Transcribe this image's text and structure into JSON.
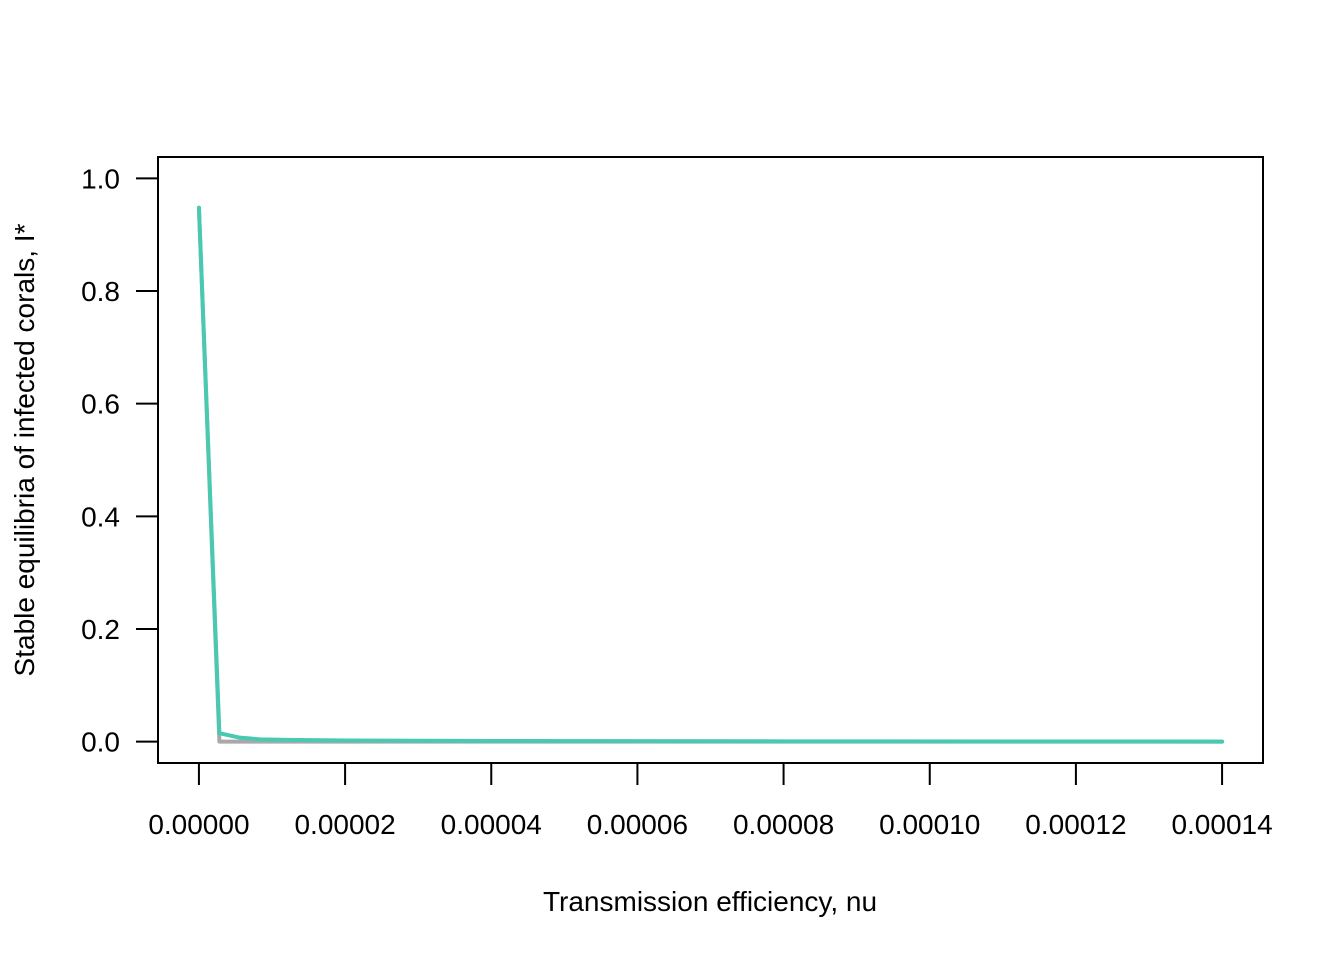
{
  "chart_data": {
    "type": "line",
    "title": "",
    "xlabel": "Transmission efficiency, nu",
    "ylabel": "Stable equilibria of infected corals, I*",
    "xlim": [
      -5.6e-06,
      0.0001456
    ],
    "ylim": [
      -0.038,
      1.038
    ],
    "x_ticks": [
      0,
      2e-05,
      4e-05,
      6e-05,
      8e-05,
      0.0001,
      0.00012,
      0.00014
    ],
    "x_tick_labels": [
      "0.00000",
      "0.00002",
      "0.00004",
      "0.00006",
      "0.00008",
      "0.00010",
      "0.00012",
      "0.00014"
    ],
    "y_ticks": [
      0,
      0.2,
      0.4,
      0.6,
      0.8,
      1.0
    ],
    "y_tick_labels": [
      "0.0",
      "0.2",
      "0.4",
      "0.6",
      "0.8",
      "1.0"
    ],
    "grid": false,
    "legend": "none",
    "series": [
      {
        "color": "#A9A9A9",
        "x": [
          0,
          2.8e-06,
          0.00014
        ],
        "y": [
          0.948,
          0.0,
          0.0
        ]
      },
      {
        "color": "#48C9B0",
        "x": [
          0,
          2.8e-06,
          5.6e-06,
          8.4e-06,
          1.2e-05,
          2e-05,
          4e-05,
          8e-05,
          0.00014
        ],
        "y": [
          0.948,
          0.015,
          0.007,
          0.004,
          0.003,
          0.002,
          0.001,
          0.0005,
          0.0
        ]
      }
    ]
  }
}
